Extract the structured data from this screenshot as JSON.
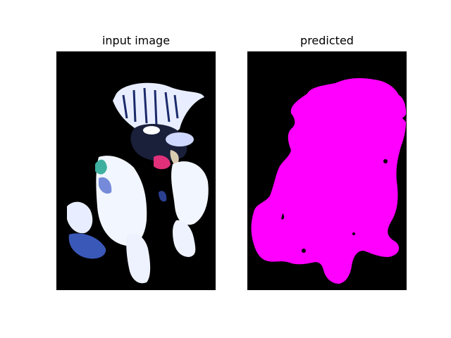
{
  "panels": [
    {
      "title": "input image",
      "content": "photo of a small long-haired dog on black background (high-contrast normalized)"
    },
    {
      "title": "predicted",
      "content": "segmentation mask of the dog"
    }
  ],
  "colors": {
    "background": "#000000",
    "mask": "#ff00ff",
    "fur_white": "#f2f6ff",
    "fur_blue": "#3a58b8",
    "tongue": "#e0307a"
  }
}
